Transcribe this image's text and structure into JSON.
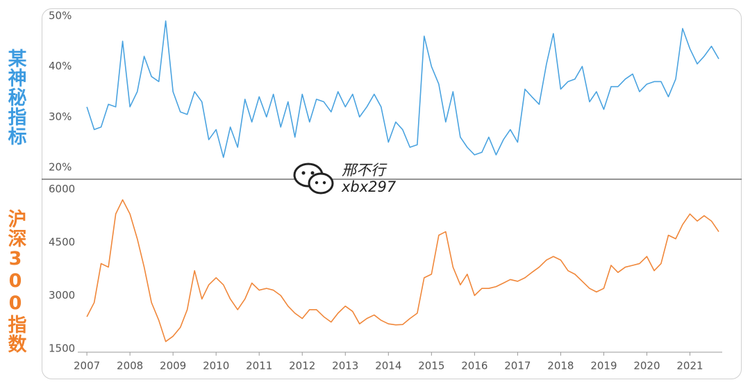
{
  "watermark": {
    "name": "邢不行",
    "id": "xbx297"
  },
  "chart_data": [
    {
      "type": "line",
      "y_label": "某神秘指标",
      "color": "#4aa3e0",
      "x": [
        2007,
        2007.17,
        2007.33,
        2007.5,
        2007.67,
        2007.83,
        2008,
        2008.17,
        2008.33,
        2008.5,
        2008.67,
        2008.83,
        2009,
        2009.17,
        2009.33,
        2009.5,
        2009.67,
        2009.83,
        2010,
        2010.17,
        2010.33,
        2010.5,
        2010.67,
        2010.83,
        2011,
        2011.17,
        2011.33,
        2011.5,
        2011.67,
        2011.83,
        2012,
        2012.17,
        2012.33,
        2012.5,
        2012.67,
        2012.83,
        2013,
        2013.17,
        2013.33,
        2013.5,
        2013.67,
        2013.83,
        2014,
        2014.17,
        2014.33,
        2014.5,
        2014.67,
        2014.83,
        2015,
        2015.17,
        2015.33,
        2015.5,
        2015.67,
        2015.83,
        2016,
        2016.17,
        2016.33,
        2016.5,
        2016.67,
        2016.83,
        2017,
        2017.17,
        2017.33,
        2017.5,
        2017.67,
        2017.83,
        2018,
        2018.17,
        2018.33,
        2018.5,
        2018.67,
        2018.83,
        2019,
        2019.17,
        2019.33,
        2019.5,
        2019.67,
        2019.83,
        2020,
        2020.17,
        2020.33,
        2020.5,
        2020.67,
        2020.83,
        2021,
        2021.17,
        2021.33,
        2021.5,
        2021.67
      ],
      "values": [
        32,
        27.5,
        28,
        32.5,
        32,
        45,
        32,
        35,
        42,
        38,
        37,
        49,
        35,
        31,
        30.5,
        35,
        33,
        25.5,
        27.5,
        22,
        28,
        24,
        33.5,
        29,
        34,
        30,
        34.5,
        28,
        33,
        26,
        34.5,
        29,
        33.5,
        33,
        31,
        35,
        32,
        34.5,
        30,
        32,
        34.5,
        32,
        25,
        29,
        27.5,
        24,
        24.5,
        46,
        40,
        36.5,
        29,
        35,
        26,
        24,
        22.5,
        23,
        26,
        22.5,
        25.5,
        27.5,
        25,
        35.5,
        34,
        32.5,
        40.5,
        46.5,
        35.5,
        37,
        37.5,
        40,
        33,
        35,
        31.5,
        36,
        36,
        37.5,
        38.5,
        35,
        36.5,
        37,
        37,
        34,
        37.5,
        47.5,
        43.5,
        40.5,
        42,
        44,
        41.5
      ],
      "xlim": [
        2006.95,
        2021.75
      ],
      "ylim": [
        18.5,
        51.5
      ],
      "yticks": [
        {
          "value": 20,
          "label": "20%"
        },
        {
          "value": 30,
          "label": "30%"
        },
        {
          "value": 40,
          "label": "40%"
        },
        {
          "value": 50,
          "label": "50%"
        }
      ]
    },
    {
      "type": "line",
      "y_label": "沪深300指数",
      "color": "#f0873a",
      "x": [
        2007,
        2007.17,
        2007.33,
        2007.5,
        2007.67,
        2007.83,
        2008,
        2008.17,
        2008.33,
        2008.5,
        2008.67,
        2008.83,
        2009,
        2009.17,
        2009.33,
        2009.5,
        2009.67,
        2009.83,
        2010,
        2010.17,
        2010.33,
        2010.5,
        2010.67,
        2010.83,
        2011,
        2011.17,
        2011.33,
        2011.5,
        2011.67,
        2011.83,
        2012,
        2012.17,
        2012.33,
        2012.5,
        2012.67,
        2012.83,
        2013,
        2013.17,
        2013.33,
        2013.5,
        2013.67,
        2013.83,
        2014,
        2014.17,
        2014.33,
        2014.5,
        2014.67,
        2014.83,
        2015,
        2015.17,
        2015.33,
        2015.5,
        2015.67,
        2015.83,
        2016,
        2016.17,
        2016.33,
        2016.5,
        2016.67,
        2016.83,
        2017,
        2017.17,
        2017.33,
        2017.5,
        2017.67,
        2017.83,
        2018,
        2018.17,
        2018.33,
        2018.5,
        2018.67,
        2018.83,
        2019,
        2019.17,
        2019.33,
        2019.5,
        2019.67,
        2019.83,
        2020,
        2020.17,
        2020.33,
        2020.5,
        2020.67,
        2020.83,
        2021,
        2021.17,
        2021.33,
        2021.5,
        2021.67
      ],
      "values": [
        2400,
        2800,
        3900,
        3800,
        5300,
        5700,
        5300,
        4600,
        3800,
        2800,
        2300,
        1700,
        1850,
        2100,
        2600,
        3700,
        2900,
        3300,
        3500,
        3300,
        2900,
        2600,
        2900,
        3350,
        3150,
        3200,
        3150,
        3000,
        2700,
        2500,
        2350,
        2600,
        2600,
        2400,
        2250,
        2500,
        2700,
        2550,
        2200,
        2350,
        2450,
        2300,
        2200,
        2170,
        2180,
        2350,
        2500,
        3500,
        3600,
        4700,
        4800,
        3800,
        3300,
        3600,
        3000,
        3200,
        3200,
        3250,
        3350,
        3450,
        3400,
        3500,
        3650,
        3800,
        4000,
        4100,
        4000,
        3700,
        3600,
        3400,
        3200,
        3100,
        3200,
        3850,
        3650,
        3800,
        3850,
        3900,
        4100,
        3700,
        3900,
        4700,
        4600,
        5000,
        5300,
        5100,
        5250,
        5100,
        4800
      ],
      "xlim": [
        2006.95,
        2021.75
      ],
      "ylim": [
        1400,
        6300
      ],
      "yticks": [
        1500,
        3000,
        4500,
        6000
      ],
      "xticks": [
        2007,
        2008,
        2009,
        2010,
        2011,
        2012,
        2013,
        2014,
        2015,
        2016,
        2017,
        2018,
        2019,
        2020,
        2021
      ]
    }
  ]
}
